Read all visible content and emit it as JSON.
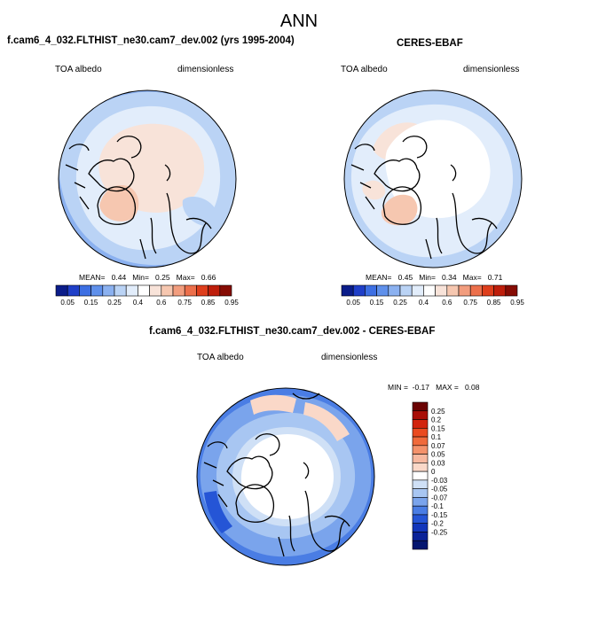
{
  "figure_title": "ANN",
  "colors": {
    "outline": "#000000",
    "ocean_default": "#bcd8f2",
    "land_default": "#e7f0fb"
  },
  "chart_data": [
    {
      "type": "map",
      "projection": "north-polar-stereographic",
      "title": "f.cam6_4_032.FLTHIST_ne30.cam7_dev.002 (yrs 1995-2004)",
      "left_label": "TOA albedo",
      "right_label": "dimensionless",
      "stats": {
        "mean_label": "MEAN=",
        "mean": "0.44",
        "min_label": "Min=",
        "min": "0.25",
        "max_label": "Max=",
        "max": "0.66"
      },
      "colorbar": {
        "orientation": "horizontal",
        "ticks": [
          "0.05",
          "0.15",
          "0.25",
          "0.4",
          "0.6",
          "0.75",
          "0.85",
          "0.95"
        ],
        "colors": [
          "#0b1d8a",
          "#1f3fc8",
          "#3d6fe3",
          "#5f90eb",
          "#8bb1f0",
          "#bad3f5",
          "#e2edfb",
          "#ffffff",
          "#f8e3d9",
          "#f6c7b0",
          "#f29d7e",
          "#ec6f4b",
          "#de3e1c",
          "#be1e0b",
          "#860c04"
        ]
      }
    },
    {
      "type": "map",
      "projection": "north-polar-stereographic",
      "title": "CERES-EBAF",
      "left_label": "TOA albedo",
      "right_label": "dimensionless",
      "stats": {
        "mean_label": "MEAN=",
        "mean": "0.45",
        "min_label": "Min=",
        "min": "0.34",
        "max_label": "Max=",
        "max": "0.71"
      },
      "colorbar": {
        "orientation": "horizontal",
        "ticks": [
          "0.05",
          "0.15",
          "0.25",
          "0.4",
          "0.6",
          "0.75",
          "0.85",
          "0.95"
        ],
        "colors": [
          "#0b1d8a",
          "#1f3fc8",
          "#3d6fe3",
          "#5f90eb",
          "#8bb1f0",
          "#bad3f5",
          "#e2edfb",
          "#ffffff",
          "#f8e3d9",
          "#f6c7b0",
          "#f29d7e",
          "#ec6f4b",
          "#de3e1c",
          "#be1e0b",
          "#860c04"
        ]
      }
    },
    {
      "type": "map",
      "projection": "north-polar-stereographic",
      "title": "f.cam6_4_032.FLTHIST_ne30.cam7_dev.002 - CERES-EBAF",
      "left_label": "TOA albedo",
      "right_label": "dimensionless",
      "stats": {
        "min_label": "MIN =",
        "min": "-0.17",
        "max_label": "MAX =",
        "max": "0.08"
      },
      "colorbar": {
        "orientation": "vertical",
        "ticks": [
          "0.25",
          "0.2",
          "0.15",
          "0.1",
          "0.07",
          "0.05",
          "0.03",
          "0",
          "-0.03",
          "-0.05",
          "-0.07",
          "-0.1",
          "-0.15",
          "-0.2",
          "-0.25"
        ],
        "colors": [
          "#6b0303",
          "#a90e07",
          "#d2240d",
          "#ea4a1f",
          "#f06a3b",
          "#f4926b",
          "#f7b89f",
          "#fad8c8",
          "#ffffff",
          "#cfe0f6",
          "#a8c6f2",
          "#7aa4ec",
          "#4a7de4",
          "#2555d6",
          "#1236bb",
          "#0a2298",
          "#041670"
        ]
      }
    }
  ]
}
